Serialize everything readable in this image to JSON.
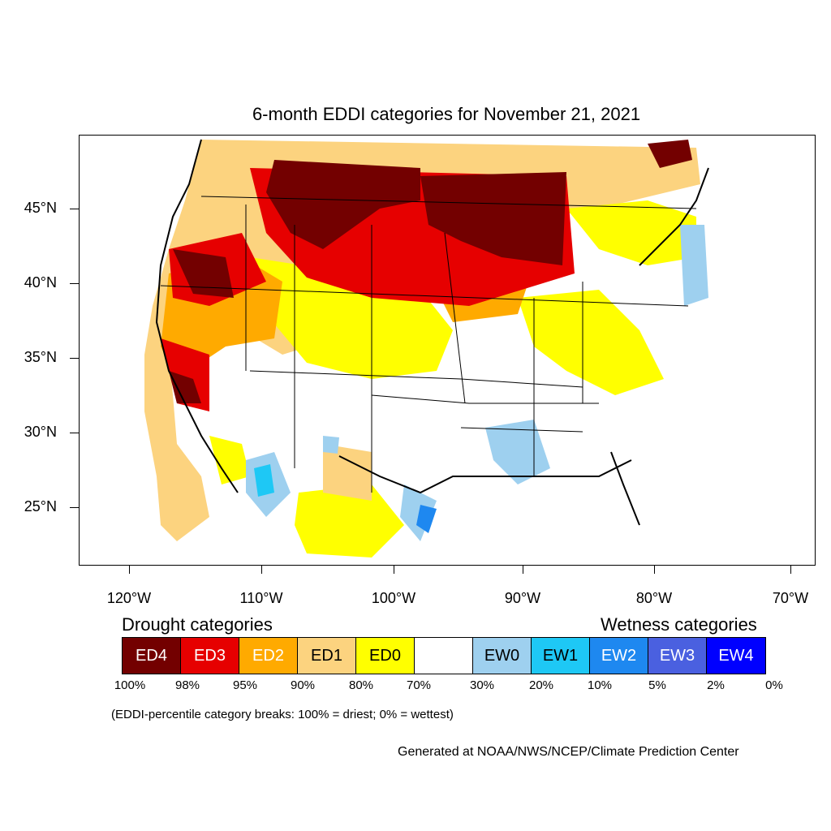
{
  "title": "6-month EDDI categories for November 21, 2021",
  "axes": {
    "lat_labels": [
      "45°N",
      "40°N",
      "35°N",
      "30°N",
      "25°N"
    ],
    "lon_labels": [
      "120°W",
      "110°W",
      "100°W",
      "90°W",
      "80°W",
      "70°W"
    ]
  },
  "legend": {
    "drought_heading": "Drought categories",
    "wetness_heading": "Wetness categories",
    "categories": [
      {
        "label": "ED4",
        "color": "#730000",
        "text_color": "#ffffff"
      },
      {
        "label": "ED3",
        "color": "#e60000",
        "text_color": "#ffffff"
      },
      {
        "label": "ED2",
        "color": "#ffaa00",
        "text_color": "#ffffff"
      },
      {
        "label": "ED1",
        "color": "#fcd37f",
        "text_color": "#000000"
      },
      {
        "label": "ED0",
        "color": "#ffff00",
        "text_color": "#000000"
      },
      {
        "label": "",
        "color": "#ffffff",
        "text_color": "#000000"
      },
      {
        "label": "EW0",
        "color": "#9ed0ef",
        "text_color": "#000000"
      },
      {
        "label": "EW1",
        "color": "#1ec8f5",
        "text_color": "#000000"
      },
      {
        "label": "EW2",
        "color": "#1e88f0",
        "text_color": "#ffffff"
      },
      {
        "label": "EW3",
        "color": "#4a60e0",
        "text_color": "#ffffff"
      },
      {
        "label": "EW4",
        "color": "#0000ff",
        "text_color": "#ffffff"
      }
    ],
    "percent_breaks": [
      "100%",
      "98%",
      "95%",
      "90%",
      "80%",
      "70%",
      "30%",
      "20%",
      "10%",
      "5%",
      "2%",
      "0%"
    ]
  },
  "note": "(EDDI-percentile category breaks: 100% = driest; 0% = wettest)",
  "credit": "Generated at NOAA/NWS/NCEP/Climate Prediction Center"
}
